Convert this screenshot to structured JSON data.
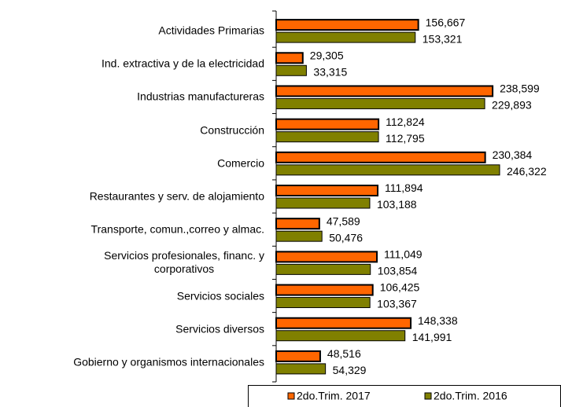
{
  "chart_data": {
    "type": "bar",
    "orientation": "horizontal",
    "categories": [
      "Actividades Primarias",
      "Ind. extractiva y de la electricidad",
      "Industrias manufactureras",
      "Construcción",
      "Comercio",
      "Restaurantes y serv. de alojamiento",
      "Transporte, comun.,correo y almac.",
      "Servicios profesionales, financ. y\ncorporativos",
      "Servicios sociales",
      "Servicios diversos",
      "Gobierno y organismos internacionales"
    ],
    "series": [
      {
        "name": "2do.Trim. 2017",
        "color": "#ff6600",
        "values": [
          156667,
          29305,
          238599,
          112824,
          230384,
          111894,
          47589,
          111049,
          106425,
          148338,
          48516
        ],
        "value_labels": [
          "156,667",
          "29,305",
          "238,599",
          "112,824",
          "230,384",
          "111,894",
          "47,589",
          "111,049",
          "106,425",
          "148,338",
          "48,516"
        ]
      },
      {
        "name": "2do.Trim. 2016",
        "color": "#808000",
        "values": [
          153321,
          33315,
          229893,
          112795,
          246322,
          103188,
          50476,
          103854,
          103367,
          141991,
          54329
        ],
        "value_labels": [
          "153,321",
          "33,315",
          "229,893",
          "112,795",
          "246,322",
          "103,188",
          "50,476",
          "103,854",
          "103,367",
          "141,991",
          "54,329"
        ]
      }
    ],
    "legend": "bottom"
  }
}
